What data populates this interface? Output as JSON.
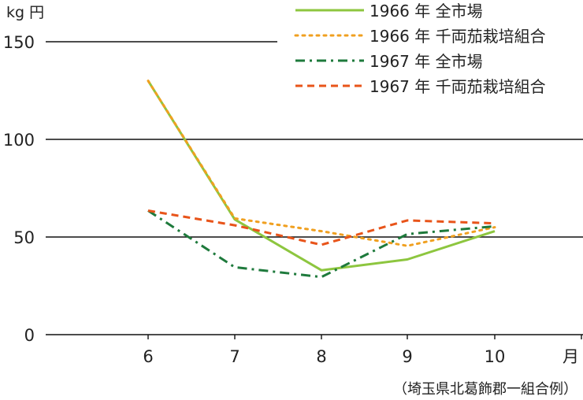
{
  "chart_data": {
    "type": "line",
    "title": "",
    "xlabel": "月",
    "ylabel": "kg 円",
    "categories": [
      "6",
      "7",
      "8",
      "9",
      "10"
    ],
    "ylim": [
      0,
      150
    ],
    "yticks": [
      "0",
      "50",
      "100",
      "150"
    ],
    "grid": "horizontal",
    "legend_position": "top-right",
    "series": [
      {
        "name": "1966 年 全市場",
        "values": [
          130,
          59,
          33,
          38.5,
          53
        ],
        "color": "#8dc63f",
        "style": "solid"
      },
      {
        "name": "1966 年 千両茄栽培組合",
        "values": [
          130,
          59.5,
          53,
          45.5,
          55
        ],
        "color": "#f0a020",
        "style": "dotted"
      },
      {
        "name": "1967 年 全市場",
        "values": [
          63.5,
          34.5,
          29.5,
          51.5,
          55.5
        ],
        "color": "#1e7a3c",
        "style": "dashdot"
      },
      {
        "name": "1967 年 千両茄栽培組合",
        "values": [
          63.5,
          56,
          46,
          58.5,
          57
        ],
        "color": "#e8541a",
        "style": "dashed"
      }
    ],
    "note": "（埼玉県北葛飾郡一組合例）"
  }
}
